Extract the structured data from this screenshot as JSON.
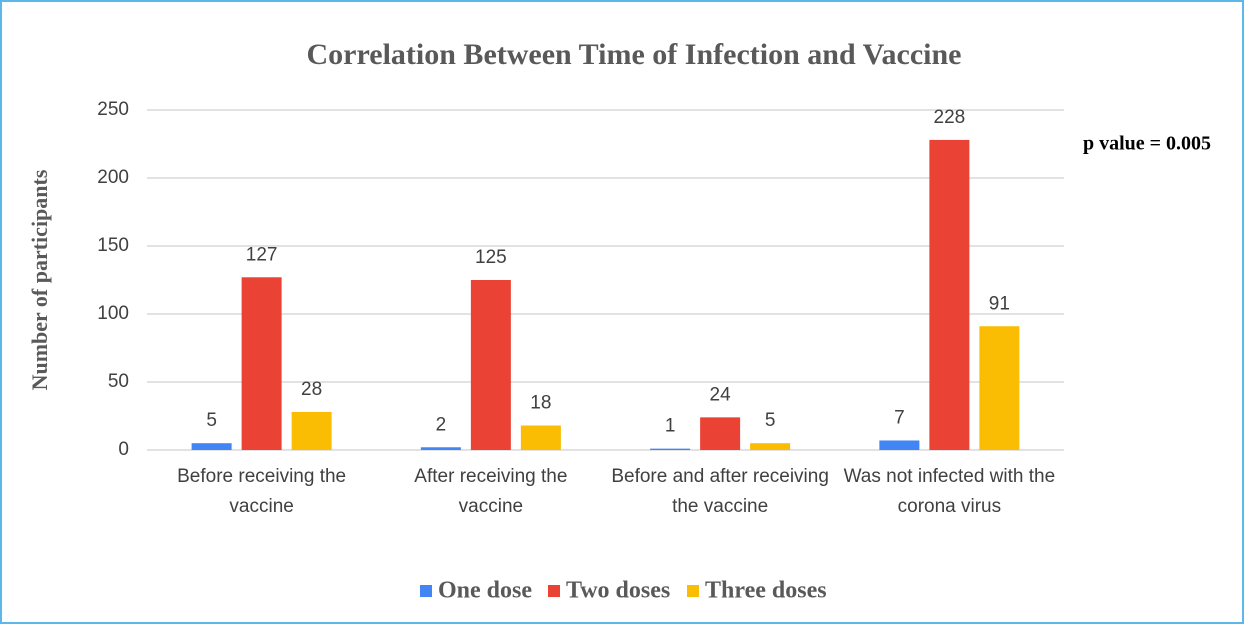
{
  "chart_data": {
    "type": "bar",
    "title": "Correlation  Between Time of Infection and Vaccine",
    "y_label": "Number of participants",
    "annotation": "p value = 0.005",
    "categories": [
      "Before receiving the vaccine",
      "After receiving the vaccine",
      "Before and after receiving the vaccine",
      "Was not infected with the corona virus"
    ],
    "series": [
      {
        "name": "One dose",
        "color": "#4285f4",
        "values": [
          5,
          2,
          1,
          7
        ]
      },
      {
        "name": "Two doses",
        "color": "#ea4335",
        "values": [
          127,
          125,
          24,
          228
        ]
      },
      {
        "name": "Three doses",
        "color": "#fbbc04",
        "values": [
          28,
          18,
          5,
          91
        ]
      }
    ],
    "ylim": [
      0,
      250
    ],
    "yticks": [
      0,
      50,
      100,
      150,
      200,
      250
    ],
    "grid": true,
    "legend": "bottom"
  }
}
